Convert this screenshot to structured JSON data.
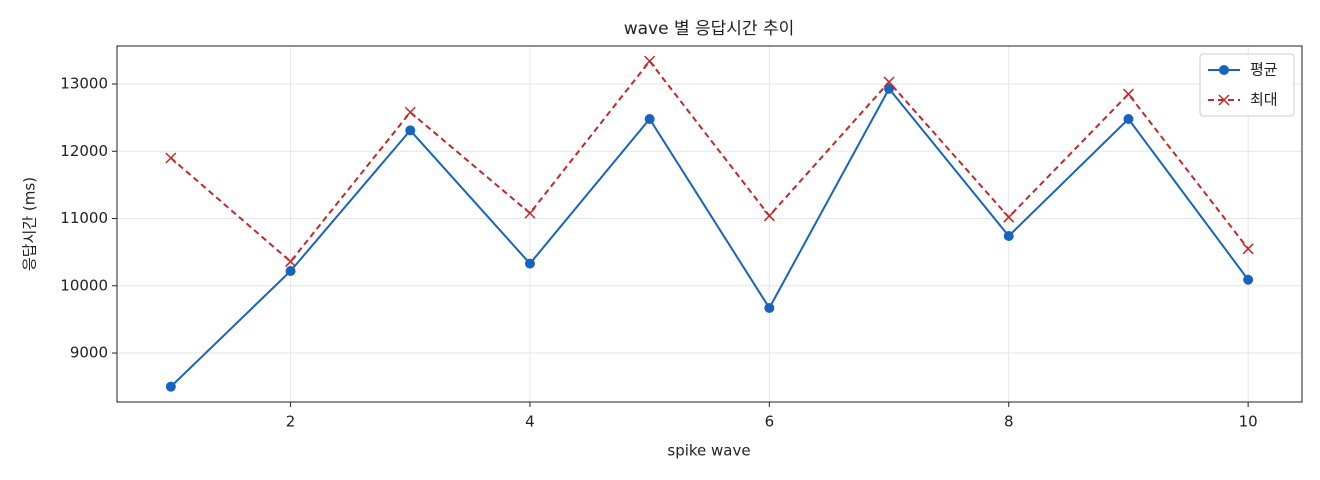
{
  "chart_data": {
    "type": "line",
    "title": "wave 별 응답시간 추이",
    "x_label": "spike wave",
    "y_label": "응답시간 (ms)",
    "x": [
      1,
      2,
      3,
      4,
      5,
      6,
      7,
      8,
      9,
      10
    ],
    "series": [
      {
        "name": "평균",
        "color": "#1565c0",
        "marker": "circle",
        "dash": "solid",
        "values": [
          8500,
          10220,
          12310,
          10330,
          12480,
          9670,
          12930,
          10740,
          12480,
          10090
        ]
      },
      {
        "name": "최대",
        "color": "#c62828",
        "marker": "x",
        "dash": "dashed",
        "values": [
          11900,
          10360,
          12580,
          11080,
          13340,
          11040,
          13030,
          11020,
          12850,
          10550
        ]
      }
    ],
    "xlim": [
      0.55,
      10.45
    ],
    "xticks": [
      2,
      4,
      6,
      8,
      10
    ],
    "ylim": [
      8272,
      13565
    ],
    "yticks": [
      9000,
      10000,
      11000,
      12000,
      13000
    ],
    "grid": true,
    "legend": "upper-right"
  }
}
